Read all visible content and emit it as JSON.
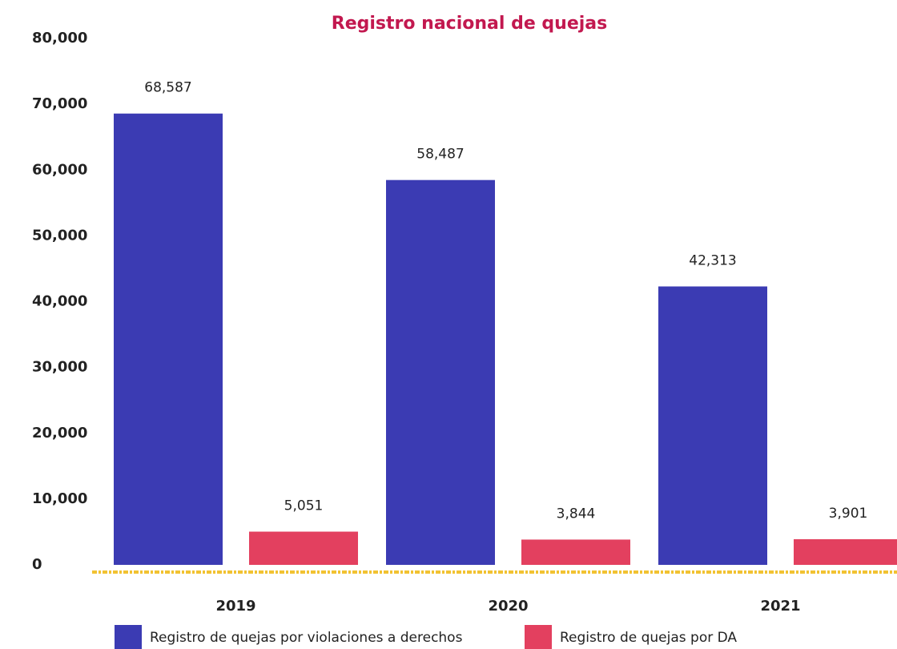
{
  "chart_data": {
    "type": "bar",
    "title": "Registro nacional de quejas",
    "categories": [
      "2019",
      "2020",
      "2021"
    ],
    "series": [
      {
        "name": "Registro de quejas por violaciones a derechos",
        "color": "#3b3bb3",
        "values": [
          68587,
          58487,
          42313
        ],
        "value_labels": [
          "68,587",
          "58,487",
          "42,313"
        ]
      },
      {
        "name": "Registro de quejas por DA",
        "color": "#e3405f",
        "values": [
          5051,
          3844,
          3901
        ],
        "value_labels": [
          "5,051",
          "3,844",
          "3,901"
        ]
      }
    ],
    "ylim": [
      0,
      80000
    ],
    "yticks": [
      0,
      {
        "value": 10000,
        "label": "10,000"
      },
      {
        "value": 20000,
        "label": "20,000"
      },
      {
        "value": 30000,
        "label": "30,000"
      },
      {
        "value": 40000,
        "label": "40,000"
      },
      {
        "value": 50000,
        "label": "50,000"
      },
      {
        "value": 60000,
        "label": "60,000"
      },
      {
        "value": 70000,
        "label": "70,000"
      },
      {
        "value": 80000,
        "label": "80,000"
      }
    ],
    "grid": false
  }
}
